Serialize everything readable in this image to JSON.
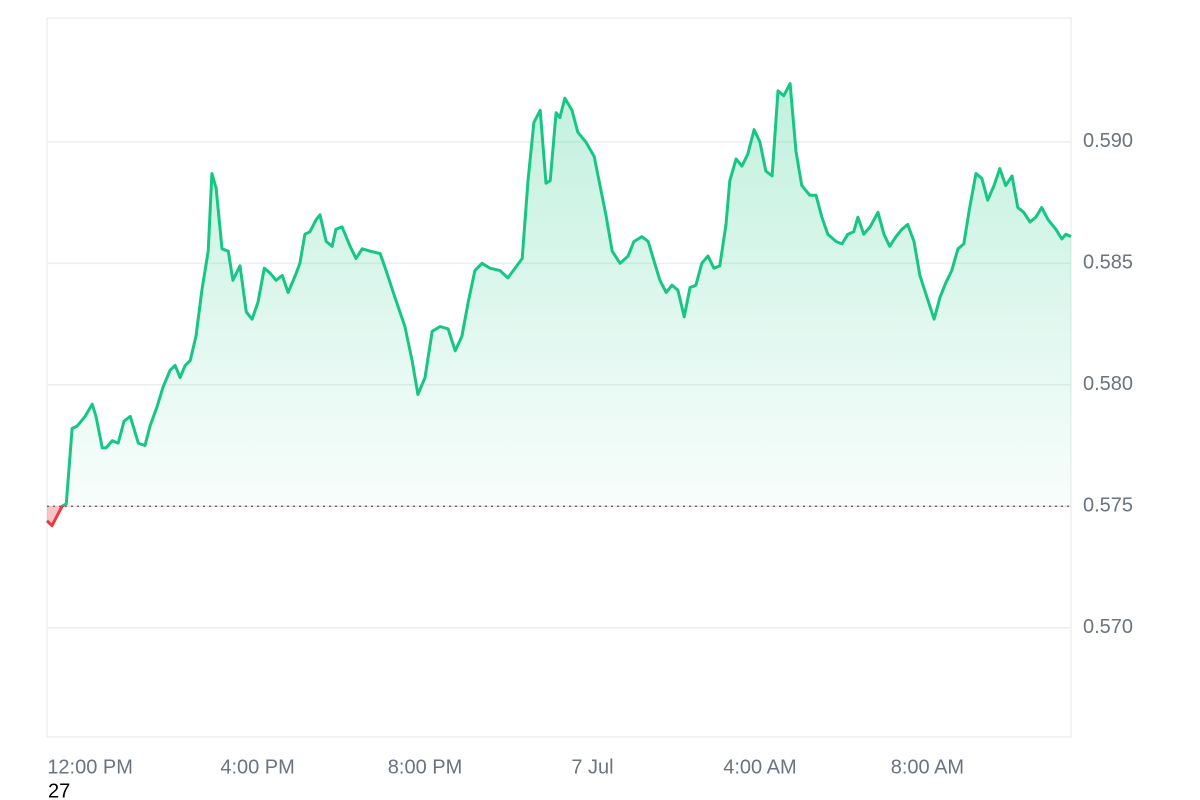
{
  "chart_data": {
    "type": "line",
    "baseline": 0.575,
    "colors": {
      "up": "#16c784",
      "down": "#ea3943"
    },
    "grid": true,
    "xlim": [
      10.97,
      35.43
    ],
    "xticks": [
      {
        "value": 12,
        "label": "12:00 PM"
      },
      {
        "value": 16,
        "label": "4:00 PM"
      },
      {
        "value": 20,
        "label": "8:00 PM"
      },
      {
        "value": 24,
        "label": "7 Jul"
      },
      {
        "value": 28,
        "label": "4:00 AM"
      },
      {
        "value": 32,
        "label": "8:00 AM"
      }
    ],
    "ylim": [
      0.5655,
      0.5951
    ],
    "yticks": [
      {
        "value": 0.57,
        "label": "0.570"
      },
      {
        "value": 0.575,
        "label": "0.575"
      },
      {
        "value": 0.58,
        "label": "0.580"
      },
      {
        "value": 0.585,
        "label": "0.585"
      },
      {
        "value": 0.59,
        "label": "0.590"
      }
    ],
    "x": [
      10.97,
      11.09,
      11.21,
      11.33,
      11.43,
      11.57,
      11.69,
      11.88,
      12.05,
      12.14,
      12.29,
      12.38,
      12.53,
      12.67,
      12.81,
      12.96,
      13.15,
      13.31,
      13.43,
      13.6,
      13.74,
      13.91,
      14.03,
      14.15,
      14.27,
      14.39,
      14.53,
      14.67,
      14.82,
      14.91,
      15.01,
      15.15,
      15.3,
      15.41,
      15.58,
      15.73,
      15.87,
      16.01,
      16.16,
      16.3,
      16.44,
      16.59,
      16.73,
      16.9,
      17.01,
      17.13,
      17.25,
      17.4,
      17.49,
      17.64,
      17.78,
      17.87,
      18.02,
      18.21,
      18.35,
      18.5,
      18.69,
      18.93,
      19.07,
      19.28,
      19.52,
      19.69,
      19.83,
      20.0,
      20.17,
      20.36,
      20.55,
      20.72,
      20.88,
      21.03,
      21.19,
      21.36,
      21.55,
      21.79,
      21.98,
      22.15,
      22.32,
      22.46,
      22.6,
      22.75,
      22.89,
      22.99,
      23.13,
      23.22,
      23.34,
      23.51,
      23.65,
      23.84,
      24.04,
      24.18,
      24.32,
      24.47,
      24.66,
      24.85,
      24.99,
      25.18,
      25.33,
      25.47,
      25.61,
      25.76,
      25.9,
      26.04,
      26.19,
      26.33,
      26.47,
      26.61,
      26.76,
      26.9,
      27.04,
      27.19,
      27.28,
      27.43,
      27.57,
      27.71,
      27.86,
      28.0,
      28.14,
      28.29,
      28.43,
      28.57,
      28.72,
      28.86,
      29.0,
      29.19,
      29.34,
      29.48,
      29.62,
      29.82,
      29.96,
      30.1,
      30.24,
      30.34,
      30.48,
      30.63,
      30.82,
      30.96,
      31.1,
      31.25,
      31.39,
      31.53,
      31.68,
      31.82,
      32.01,
      32.16,
      32.3,
      32.44,
      32.58,
      32.73,
      32.87,
      33.01,
      33.16,
      33.3,
      33.44,
      33.59,
      33.73,
      33.87,
      34.02,
      34.16,
      34.3,
      34.45,
      34.59,
      34.73,
      34.88,
      35.07,
      35.21,
      35.31,
      35.43
    ],
    "values": [
      0.5744,
      0.5742,
      0.5746,
      0.575,
      0.5751,
      0.5782,
      0.5783,
      0.5787,
      0.5792,
      0.5787,
      0.5774,
      0.5774,
      0.5777,
      0.5776,
      0.5785,
      0.5787,
      0.5776,
      0.5775,
      0.5783,
      0.5791,
      0.5799,
      0.5806,
      0.5808,
      0.5803,
      0.5808,
      0.581,
      0.582,
      0.5839,
      0.5855,
      0.5887,
      0.5881,
      0.5856,
      0.5855,
      0.5843,
      0.5849,
      0.583,
      0.5827,
      0.5834,
      0.5848,
      0.5846,
      0.5843,
      0.5845,
      0.5838,
      0.5845,
      0.585,
      0.5862,
      0.5863,
      0.5868,
      0.587,
      0.5859,
      0.5857,
      0.5864,
      0.5865,
      0.5857,
      0.5852,
      0.5856,
      0.5855,
      0.5854,
      0.5847,
      0.5836,
      0.5824,
      0.581,
      0.5796,
      0.5803,
      0.5822,
      0.5824,
      0.5823,
      0.5814,
      0.582,
      0.5834,
      0.5847,
      0.585,
      0.5848,
      0.5847,
      0.5844,
      0.5848,
      0.5852,
      0.5884,
      0.5908,
      0.5913,
      0.5883,
      0.5884,
      0.5912,
      0.591,
      0.5918,
      0.5913,
      0.5904,
      0.59,
      0.5894,
      0.5882,
      0.587,
      0.5855,
      0.585,
      0.5853,
      0.5859,
      0.5861,
      0.5859,
      0.5851,
      0.5843,
      0.5838,
      0.5841,
      0.5839,
      0.5828,
      0.584,
      0.5841,
      0.585,
      0.5853,
      0.5848,
      0.5849,
      0.5866,
      0.5884,
      0.5893,
      0.589,
      0.5895,
      0.5905,
      0.59,
      0.5888,
      0.5886,
      0.5921,
      0.5919,
      0.5924,
      0.5896,
      0.5882,
      0.5878,
      0.5878,
      0.5869,
      0.5862,
      0.5859,
      0.5858,
      0.5862,
      0.5863,
      0.5869,
      0.5862,
      0.5865,
      0.5871,
      0.5862,
      0.5857,
      0.5861,
      0.5864,
      0.5866,
      0.5859,
      0.5845,
      0.5835,
      0.5827,
      0.5836,
      0.5842,
      0.5847,
      0.5856,
      0.5858,
      0.5873,
      0.5887,
      0.5885,
      0.5876,
      0.5882,
      0.5889,
      0.5882,
      0.5886,
      0.5873,
      0.5871,
      0.5867,
      0.5869,
      0.5873,
      0.5868,
      0.5864,
      0.586,
      0.5862,
      0.5861
    ]
  },
  "footnote": "27"
}
